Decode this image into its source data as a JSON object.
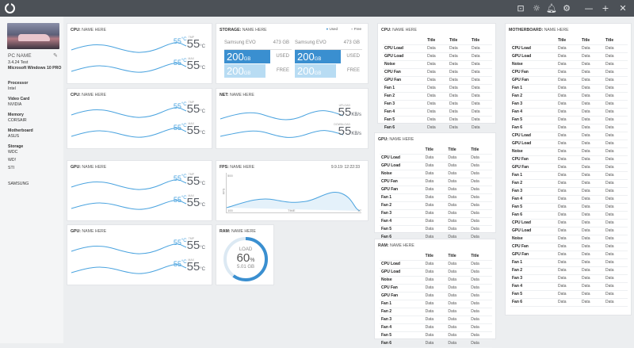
{
  "app": {
    "minimize": "—",
    "maximize": "+",
    "close": "✕"
  },
  "sidebar": {
    "pc_name": "PC NAME",
    "version": "3.4.24 Test",
    "os": "Microsoft Windows 10 PRO",
    "items": [
      {
        "label": "Processor",
        "value": "Intel"
      },
      {
        "label": "Video Card",
        "value": "NVIDIA"
      },
      {
        "label": "Memory",
        "value": "CORSAIR"
      },
      {
        "label": "Motherboard",
        "value": "ASUS"
      }
    ],
    "storage_label": "Storage",
    "storage": [
      "WDC",
      "WD!",
      "STI",
      "",
      "SAMSUNG"
    ]
  },
  "cards": {
    "cpu1": {
      "prefix": "CPU:",
      "name": "NAME HERE"
    },
    "cpu2": {
      "prefix": "CPU:",
      "name": "NAME HERE"
    },
    "gpu1": {
      "prefix": "GPU:",
      "name": "NAME HERE"
    },
    "gpu2": {
      "prefix": "GPU:",
      "name": "NAME HERE"
    },
    "storage": {
      "prefix": "STORAGE:",
      "name": "NAME HERE",
      "legend_used": "Used",
      "legend_free": "Free"
    },
    "net": {
      "prefix": "NET:",
      "name": "NAME HERE",
      "upload_label": "UPLOAD",
      "download_label": "DOWNLOAD",
      "upload": "55",
      "download": "55",
      "unit": "KB/s"
    },
    "fps": {
      "prefix": "FPS:",
      "name": "NAME HERE",
      "time": "9.9.19: 12:22:33",
      "ymax": "500",
      "ylabel": "FPS",
      "x0": "100",
      "xlabel": "TIME",
      "x1": "27"
    },
    "ram": {
      "prefix": "RAM:",
      "name": "NAME HERE",
      "load_label": "LOAD",
      "percent": "60",
      "pct_sign": "%",
      "size": "5.01 GB",
      "fraction": 0.6
    }
  },
  "gauge": {
    "small": "55",
    "small_unit": "°C",
    "big": "55",
    "big_unit": "°C",
    "label_top": "TMP",
    "label_bot": "MAX"
  },
  "drives": [
    {
      "name": "Samsung EVO",
      "size": "473 GB",
      "used": "200",
      "free": "200",
      "unit": "GB",
      "used_label": "USED",
      "free_label": "FREE"
    },
    {
      "name": "Samsung EVO",
      "size": "473 GB",
      "used": "200",
      "free": "200",
      "unit": "GB",
      "used_label": "USED",
      "free_label": "FREE"
    }
  ],
  "colors": {
    "accent": "#4aa3df",
    "titlebar": "#4c5157",
    "used": "#3a8fd0"
  },
  "tables": {
    "cpu": {
      "prefix": "CPU:",
      "name": "NAME HERE",
      "header": [
        "",
        "Title",
        "Title",
        "Title"
      ],
      "rows": [
        "CPU Load",
        "GPU Load",
        "Noise",
        "CPU Fan",
        "GPU Fan",
        "Fan 1",
        "Fan 2",
        "Fan 3",
        "Fan 4",
        "Fan 5",
        "Fan 6"
      ]
    },
    "gpu": {
      "prefix": "GPU:",
      "name": "NAME HERE",
      "header": [
        "",
        "Title",
        "Title",
        "Title"
      ],
      "rows": [
        "CPU Load",
        "GPU Load",
        "Noise",
        "CPU Fan",
        "GPU Fan",
        "Fan 1",
        "Fan 2",
        "Fan 3",
        "Fan 4",
        "Fan 5",
        "Fan 6"
      ]
    },
    "ram": {
      "prefix": "RAM:",
      "name": "NAME HERE",
      "header": [
        "",
        "Title",
        "Title",
        "Title"
      ],
      "rows": [
        "CPU Load",
        "GPU Load",
        "Noise",
        "CPU Fan",
        "GPU Fan",
        "Fan 1",
        "Fan 2",
        "Fan 3",
        "Fan 4",
        "Fan 5",
        "Fan 6"
      ]
    },
    "mb": {
      "prefix": "MOTHERBOARD:",
      "name": "NAME HERE",
      "header": [
        "",
        "Title",
        "Title",
        "Title"
      ],
      "rows": [
        "CPU Load",
        "GPU Load",
        "Noise",
        "CPU Fan",
        "GPU Fan",
        "Fan 1",
        "Fan 2",
        "Fan 3",
        "Fan 4",
        "Fan 5",
        "Fan 6",
        "CPU Load",
        "GPU Load",
        "Noise",
        "CPU Fan",
        "GPU Fan",
        "Fan 1",
        "Fan 2",
        "Fan 3",
        "Fan 4",
        "Fan 5",
        "Fan 6",
        "CPU Load",
        "GPU Load",
        "Noise",
        "CPU Fan",
        "GPU Fan",
        "Fan 1",
        "Fan 2",
        "Fan 3",
        "Fan 4",
        "Fan 5",
        "Fan 6"
      ]
    },
    "cell": "Data"
  }
}
